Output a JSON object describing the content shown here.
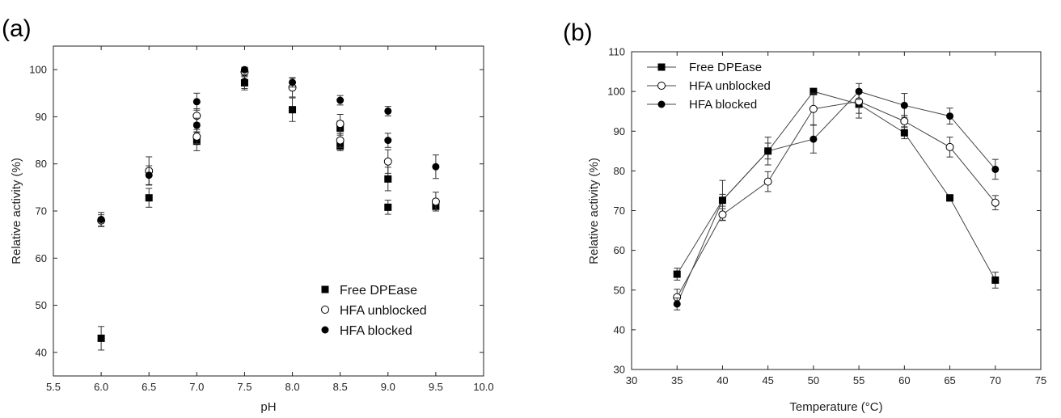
{
  "chart_data": [
    {
      "panel_label": "(a)",
      "type": "scatter",
      "xlabel": "pH",
      "ylabel": "Relative activity (%)",
      "xlim": [
        5.5,
        10.0
      ],
      "ylim": [
        35,
        105
      ],
      "xticks": [
        5.5,
        6.0,
        6.5,
        7.0,
        7.5,
        8.0,
        8.5,
        9.0,
        9.5,
        10.0
      ],
      "xtick_labels": [
        "5.5",
        "6.0",
        "6.5",
        "7.0",
        "7.5",
        "8.0",
        "8.5",
        "9.0",
        "9.5",
        "10.0"
      ],
      "yticks": [
        40,
        50,
        60,
        70,
        80,
        90,
        100
      ],
      "ytick_labels": [
        "40",
        "50",
        "60",
        "70",
        "80",
        "90",
        "100"
      ],
      "legend_position": "bottom-right",
      "series": [
        {
          "name": "Free DPEase",
          "marker": "square-filled",
          "points": [
            {
              "x": 6.0,
              "y": 43.0,
              "err": 2.5
            },
            {
              "x": 6.5,
              "y": 72.8,
              "err": 2.0
            },
            {
              "x": 7.0,
              "y": 84.8,
              "err": 2.0
            },
            {
              "x": 7.5,
              "y": 97.2,
              "err": 1.5
            },
            {
              "x": 8.0,
              "y": 91.5,
              "err": 2.5
            },
            {
              "x": 8.5,
              "y": 83.8,
              "err": 1.0
            },
            {
              "x": 8.5,
              "y": 87.6,
              "err": 1.5
            },
            {
              "x": 9.0,
              "y": 70.8,
              "err": 1.5
            },
            {
              "x": 9.0,
              "y": 76.8,
              "err": 2.5
            },
            {
              "x": 9.5,
              "y": 71.0,
              "err": 1.0
            }
          ]
        },
        {
          "name": "HFA unblocked",
          "marker": "circle-open",
          "points": [
            {
              "x": 6.0,
              "y": 68.0,
              "err": 1.2
            },
            {
              "x": 6.5,
              "y": 78.5,
              "err": 3.0
            },
            {
              "x": 7.0,
              "y": 85.8,
              "err": 1.5
            },
            {
              "x": 7.0,
              "y": 90.2,
              "err": 1.5
            },
            {
              "x": 7.5,
              "y": 99.5,
              "err": 1.0
            },
            {
              "x": 8.0,
              "y": 96.2,
              "err": 2.0
            },
            {
              "x": 8.5,
              "y": 85.0,
              "err": 1.5
            },
            {
              "x": 8.5,
              "y": 88.5,
              "err": 2.0
            },
            {
              "x": 9.0,
              "y": 80.5,
              "err": 2.5
            },
            {
              "x": 9.5,
              "y": 72.0,
              "err": 2.0
            }
          ]
        },
        {
          "name": "HFA blocked",
          "marker": "circle-filled",
          "points": [
            {
              "x": 6.0,
              "y": 68.2,
              "err": 1.5
            },
            {
              "x": 6.5,
              "y": 77.6,
              "err": 2.0
            },
            {
              "x": 7.0,
              "y": 88.2,
              "err": 1.5
            },
            {
              "x": 7.0,
              "y": 93.2,
              "err": 1.8
            },
            {
              "x": 7.5,
              "y": 97.5,
              "err": 1.5
            },
            {
              "x": 7.5,
              "y": 100.0,
              "err": 0.5
            },
            {
              "x": 8.0,
              "y": 97.3,
              "err": 1.0
            },
            {
              "x": 8.5,
              "y": 93.5,
              "err": 1.0
            },
            {
              "x": 9.0,
              "y": 91.2,
              "err": 1.0
            },
            {
              "x": 9.0,
              "y": 85.0,
              "err": 1.5
            },
            {
              "x": 9.5,
              "y": 79.4,
              "err": 2.5
            }
          ]
        }
      ]
    },
    {
      "panel_label": "(b)",
      "type": "line",
      "xlabel": "Temperature (°C)",
      "ylabel": "Relative activity (%)",
      "xlim": [
        30,
        75
      ],
      "ylim": [
        30,
        110
      ],
      "xticks": [
        30,
        35,
        40,
        45,
        50,
        55,
        60,
        65,
        70,
        75
      ],
      "xtick_labels": [
        "30",
        "35",
        "40",
        "45",
        "50",
        "55",
        "60",
        "65",
        "70",
        "75"
      ],
      "yticks": [
        30,
        40,
        50,
        60,
        70,
        80,
        90,
        100,
        110
      ],
      "ytick_labels": [
        "30",
        "40",
        "50",
        "60",
        "70",
        "80",
        "90",
        "100",
        "110"
      ],
      "legend_position": "top-left",
      "series": [
        {
          "name": "Free DPEase",
          "marker": "square-filled",
          "x": [
            35,
            40,
            45,
            50,
            55,
            60,
            65,
            70
          ],
          "y": [
            54.0,
            72.6,
            85.0,
            100.0,
            96.8,
            89.6,
            73.2,
            52.5
          ],
          "err": [
            1.5,
            5.0,
            3.5,
            0.5,
            3.5,
            1.5,
            0.8,
            2.0
          ]
        },
        {
          "name": "HFA unblocked",
          "marker": "circle-open",
          "x": [
            35,
            40,
            45,
            50,
            55,
            60,
            65,
            70
          ],
          "y": [
            48.2,
            69.0,
            77.3,
            95.6,
            97.5,
            92.5,
            86.0,
            72.0
          ],
          "err": [
            2.0,
            1.5,
            2.5,
            4.0,
            3.0,
            1.5,
            2.5,
            1.8
          ]
        },
        {
          "name": "HFA blocked",
          "marker": "circle-filled",
          "x": [
            35,
            40,
            45,
            50,
            55,
            60,
            65,
            70
          ],
          "y": [
            46.5,
            72.6,
            85.0,
            88.0,
            100.0,
            96.5,
            93.8,
            80.4
          ],
          "err": [
            1.5,
            1.5,
            2.0,
            3.5,
            2.0,
            3.0,
            2.0,
            2.5
          ]
        }
      ]
    }
  ]
}
